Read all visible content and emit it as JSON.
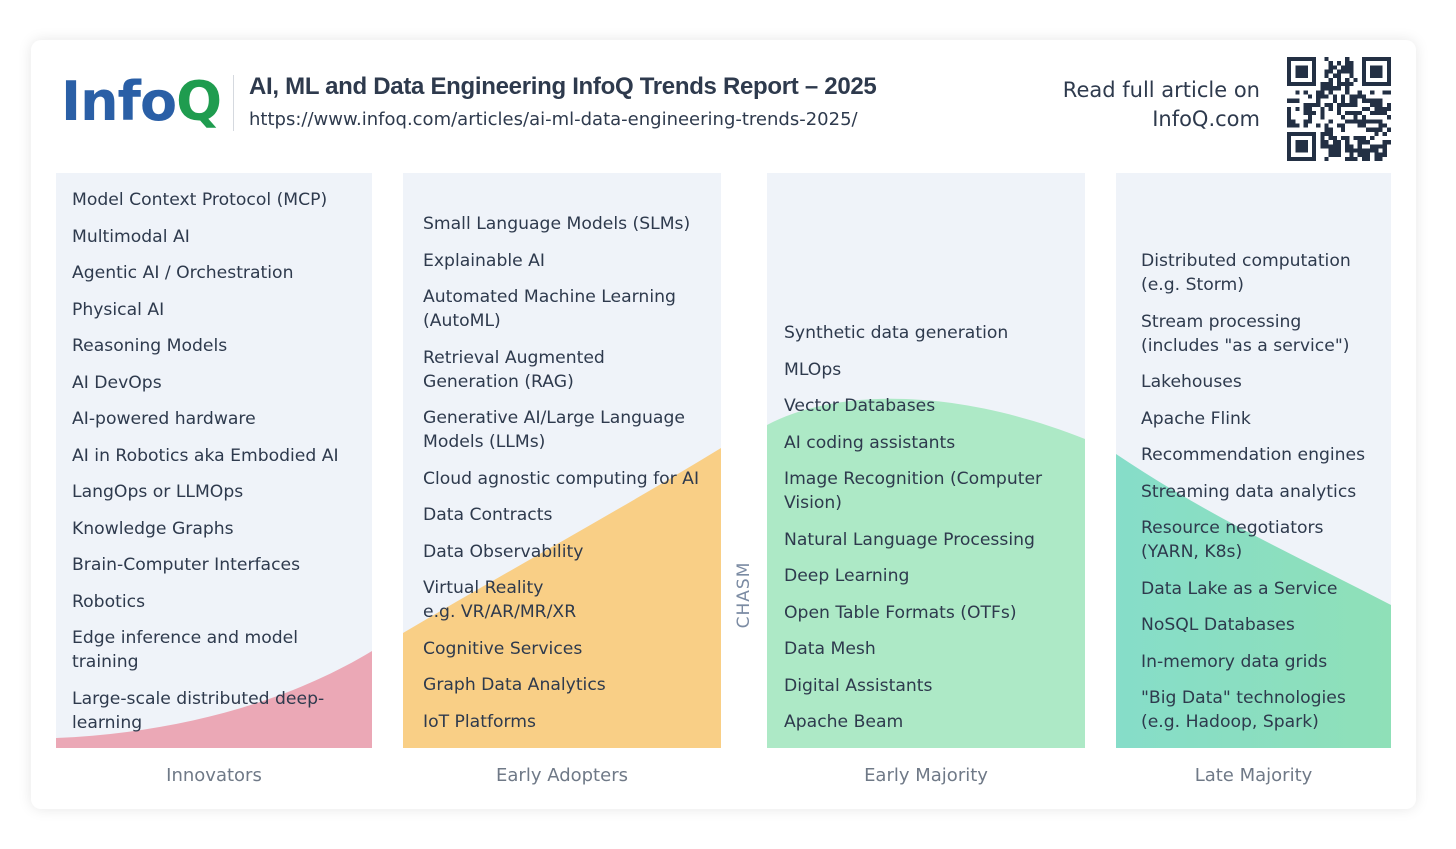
{
  "header": {
    "logo_part1": "Info",
    "logo_part2": "Q",
    "title": "AI, ML and Data Engineering InfoQ Trends Report – 2025",
    "url": "https://www.infoq.com/articles/ai-ml-data-engineering-trends-2025/",
    "read_more_line1": "Read full article on",
    "read_more_line2": "InfoQ.com"
  },
  "chasm_label": "CHASM",
  "colors": {
    "logo_blue": "#2a5fa6",
    "logo_green": "#1f9c4f",
    "innovators_fill": "#eba8b6",
    "early_adopters_fill": "#f9cf86",
    "early_majority_fill": "#ade9c6",
    "late_majority_fill": "#8fe0b8"
  },
  "columns": [
    {
      "label": "Innovators",
      "items": [
        "Model Context Protocol (MCP)",
        "Multimodal AI",
        "Agentic AI / Orchestration",
        "Physical AI",
        "Reasoning Models",
        "AI DevOps",
        "AI-powered hardware",
        "AI in Robotics aka Embodied AI",
        "LangOps or LLMOps",
        "Knowledge Graphs",
        "Brain-Computer Interfaces",
        "Robotics",
        "Edge inference and model\ntraining",
        "Large-scale distributed deep-\nlearning"
      ]
    },
    {
      "label": "Early Adopters",
      "items": [
        "Small Language Models (SLMs)",
        "Explainable AI",
        "Automated Machine Learning\n(AutoML)",
        "Retrieval Augmented\nGeneration (RAG)",
        "Generative AI/Large Language\nModels (LLMs)",
        "Cloud agnostic computing for AI",
        "Data Contracts",
        "Data Observability",
        "Virtual Reality\ne.g. VR/AR/MR/XR",
        "Cognitive Services",
        "Graph Data Analytics",
        "IoT Platforms"
      ]
    },
    {
      "label": "Early Majority",
      "items": [
        "Synthetic data generation",
        "MLOps",
        "Vector Databases",
        "AI coding assistants",
        "Image Recognition (Computer\nVision)",
        "Natural Language Processing",
        "Deep Learning",
        "Open Table Formats (OTFs)",
        "Data Mesh",
        "Digital Assistants",
        "Apache Beam"
      ]
    },
    {
      "label": "Late Majority",
      "items": [
        "Distributed computation\n(e.g. Storm)",
        "Stream processing\n(includes \"as a service\")",
        "Lakehouses",
        "Apache Flink",
        "Recommendation engines",
        "Streaming data analytics",
        "Resource negotiators\n(YARN, K8s)",
        "Data Lake as a Service",
        "NoSQL Databases",
        "In-memory data grids",
        "\"Big Data\" technologies\n(e.g. Hadoop, Spark)"
      ]
    }
  ]
}
